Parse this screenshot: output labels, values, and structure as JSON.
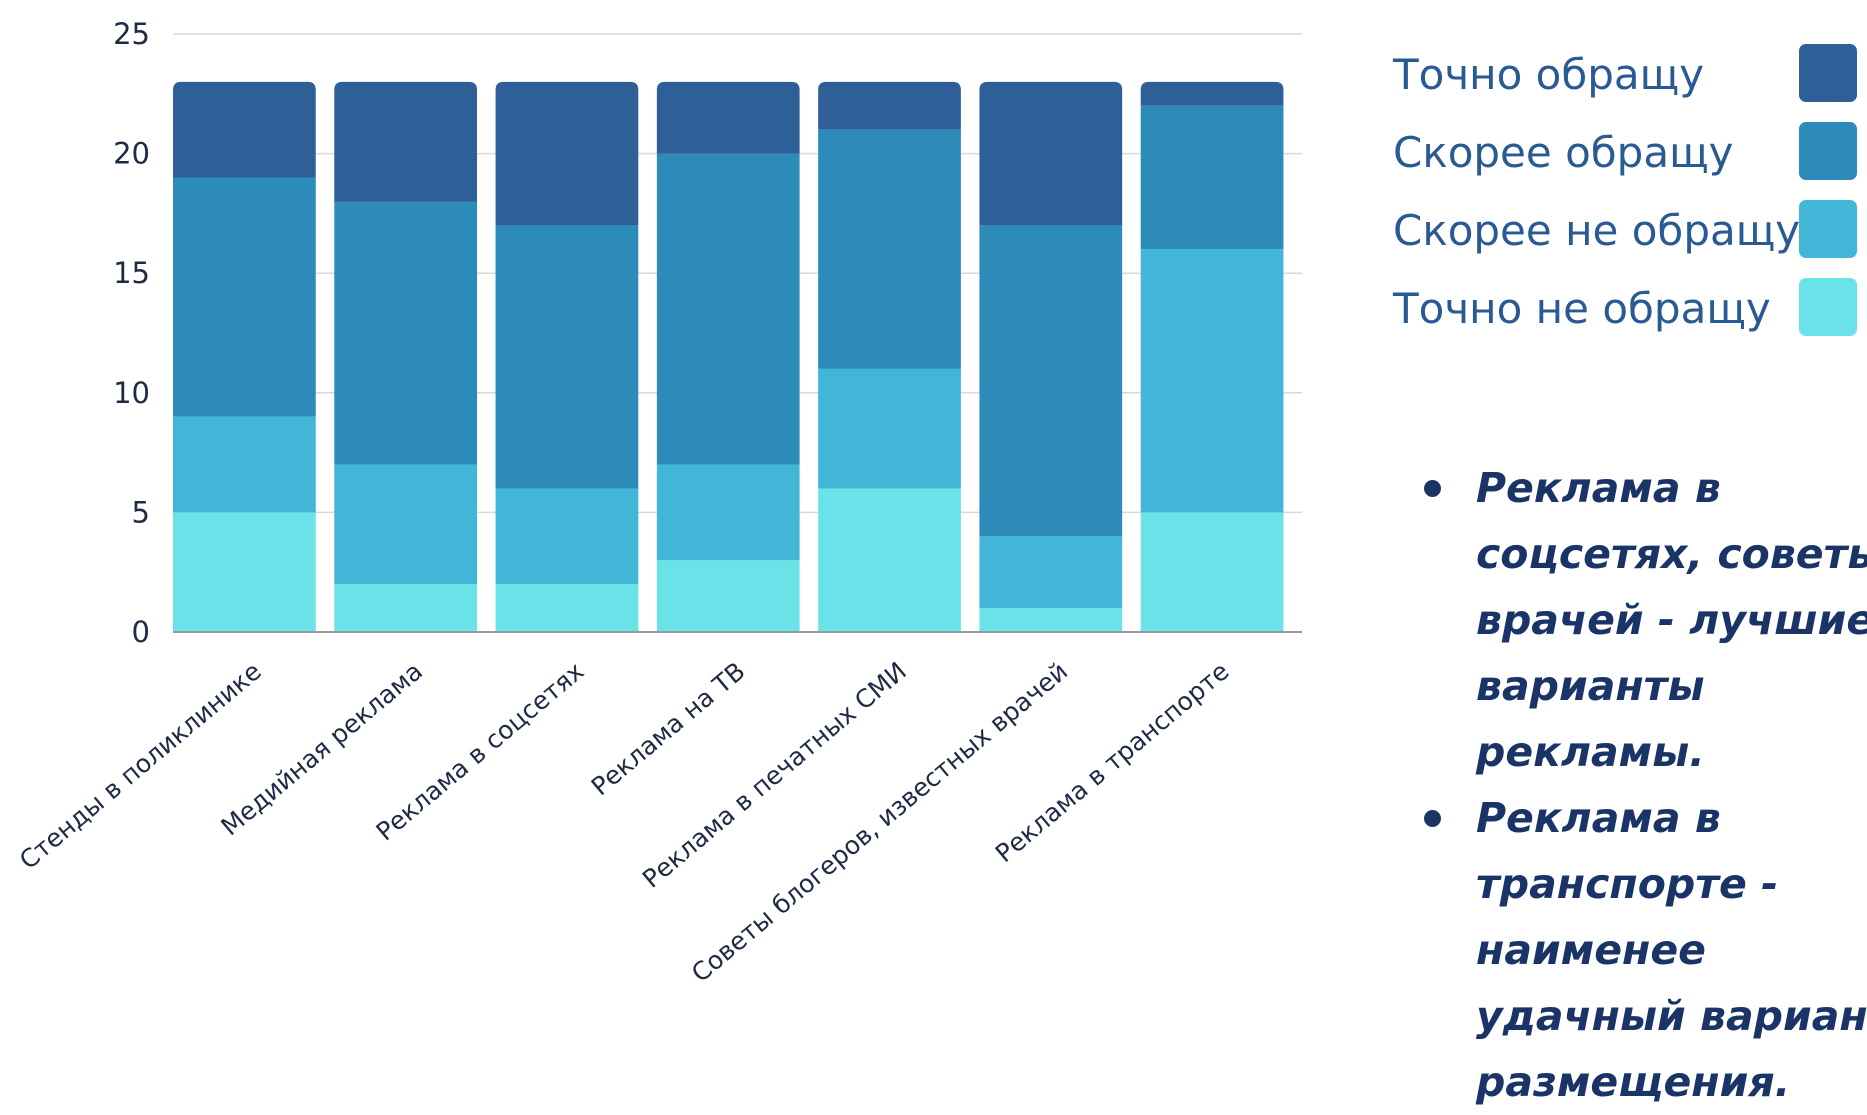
{
  "chart_data": {
    "type": "bar",
    "stacked": true,
    "categories": [
      "Стенды в поликлинике",
      "Медийная реклама",
      "Реклама в соцсетях",
      "Реклама на ТВ",
      "Реклама в печатных СМИ",
      "Советы блогеров, известных врачей",
      "Реклама в транспорте"
    ],
    "series": [
      {
        "name": "Точно не обращу",
        "color": "#6ae3e8",
        "values": [
          5,
          2,
          2,
          3,
          6,
          1,
          5
        ]
      },
      {
        "name": "Скорее не обращу",
        "color": "#42b6d6",
        "values": [
          4,
          5,
          4,
          4,
          5,
          3,
          11
        ]
      },
      {
        "name": "Скорее обращу",
        "color": "#2d8bba",
        "values": [
          10,
          11,
          11,
          13,
          10,
          13,
          6
        ]
      },
      {
        "name": "Точно обращу",
        "color": "#2e5f97",
        "values": [
          4,
          5,
          6,
          3,
          2,
          6,
          1
        ]
      }
    ],
    "yticks": [
      "0",
      "5",
      "10",
      "15",
      "20",
      "25"
    ],
    "ylim": [
      0,
      25
    ],
    "grid": true,
    "legend_position": "right"
  },
  "legend": {
    "items": [
      {
        "label": "Точно обращу",
        "color": "#2e5f97"
      },
      {
        "label": "Скорее обращу",
        "color": "#2d8bba"
      },
      {
        "label": "Скорее не обращу",
        "color": "#42b6d6"
      },
      {
        "label": "Точно не обращу",
        "color": "#6ae3e8"
      }
    ]
  },
  "notes": {
    "bullet1": "Реклама в соцсетях, советы врачей - лучшие варианты рекламы.",
    "bullet2": "Реклама в транспорте - наименее удачный вариант размещения."
  }
}
